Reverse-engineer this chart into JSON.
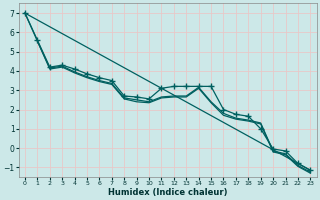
{
  "xlabel": "Humidex (Indice chaleur)",
  "bg_color": "#cce8e8",
  "grid_color": "#e8c8c8",
  "line_color": "#006060",
  "xlim": [
    -0.5,
    23.5
  ],
  "ylim": [
    -1.5,
    7.5
  ],
  "xticks": [
    0,
    1,
    2,
    3,
    4,
    5,
    6,
    7,
    8,
    9,
    10,
    11,
    12,
    13,
    14,
    15,
    16,
    17,
    18,
    19,
    20,
    21,
    22,
    23
  ],
  "yticks": [
    -1,
    0,
    1,
    2,
    3,
    4,
    5,
    6,
    7
  ],
  "series": [
    {
      "x": [
        0,
        1,
        2,
        3,
        4,
        5,
        6,
        7,
        8,
        9,
        10,
        11,
        12,
        13,
        14,
        15,
        16,
        17,
        18,
        19,
        20,
        21,
        22,
        23
      ],
      "y": [
        7.0,
        5.6,
        4.2,
        4.3,
        4.1,
        3.85,
        3.65,
        3.5,
        2.7,
        2.65,
        2.55,
        3.1,
        3.2,
        3.2,
        3.2,
        3.2,
        2.0,
        1.75,
        1.65,
        1.0,
        -0.05,
        -0.15,
        -0.8,
        -1.15
      ],
      "has_marker": true
    },
    {
      "x": [
        0,
        1,
        2,
        3,
        4,
        5,
        6,
        7,
        8,
        9,
        10,
        11,
        12,
        13,
        14,
        15,
        16,
        17,
        18,
        19,
        20,
        21,
        22,
        23
      ],
      "y": [
        7.0,
        5.55,
        4.15,
        4.25,
        3.95,
        3.7,
        3.5,
        3.35,
        2.6,
        2.5,
        2.4,
        2.65,
        2.7,
        2.7,
        3.15,
        2.4,
        1.8,
        1.55,
        1.45,
        1.3,
        -0.15,
        -0.3,
        -0.9,
        -1.25
      ],
      "has_marker": false
    },
    {
      "x": [
        1,
        2,
        3,
        4,
        5,
        6,
        7,
        8,
        9,
        10,
        11,
        12,
        13,
        14,
        15,
        16,
        17,
        18,
        19,
        20,
        21,
        22,
        23
      ],
      "y": [
        5.55,
        4.1,
        4.2,
        3.9,
        3.65,
        3.45,
        3.3,
        2.55,
        2.4,
        2.35,
        2.6,
        2.65,
        2.65,
        3.1,
        2.35,
        1.7,
        1.5,
        1.4,
        1.25,
        -0.2,
        -0.35,
        -0.95,
        -1.3
      ],
      "has_marker": false
    },
    {
      "x": [
        0,
        23
      ],
      "y": [
        7.0,
        -1.15
      ],
      "has_marker": false,
      "straight": true
    }
  ]
}
